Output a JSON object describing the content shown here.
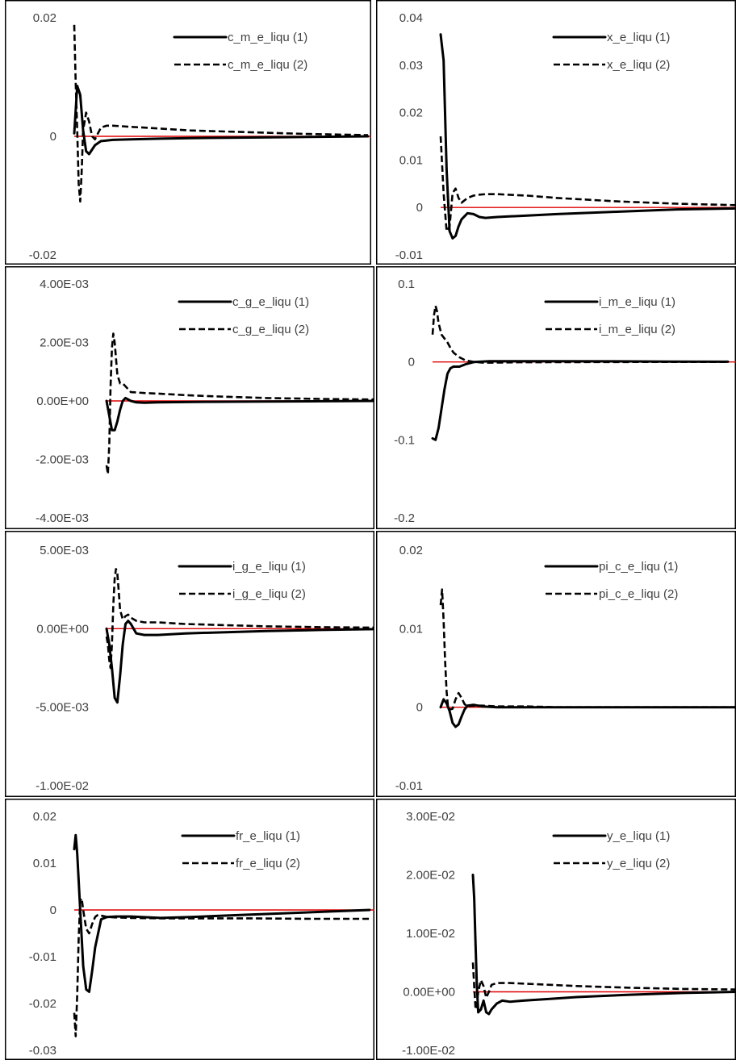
{
  "colors": {
    "series": "#000000",
    "zero_line": "#e00000",
    "tick_text": "#404040"
  },
  "chart_data": [
    {
      "type": "line",
      "ylim": [
        -0.02,
        0.02
      ],
      "yticks": [
        "0.02",
        "0",
        "-0.02"
      ],
      "ytick_values": [
        0.02,
        0,
        -0.02
      ],
      "legend_position": "top-right",
      "series": [
        {
          "name": "c_m_e_liqu (1)",
          "style": "solid",
          "x": [
            1,
            2,
            3,
            4,
            5,
            6,
            8,
            10,
            14,
            20,
            30,
            40,
            60,
            80,
            100
          ],
          "y": [
            0.0005,
            0.0085,
            0.007,
            0.001,
            -0.0025,
            -0.003,
            -0.0015,
            -0.0008,
            -0.0006,
            -0.0005,
            -0.0004,
            -0.0003,
            -0.0002,
            -0.0001,
            0
          ]
        },
        {
          "name": "c_m_e_liqu (2)",
          "style": "dashed",
          "x": [
            1,
            1.5,
            2,
            2.5,
            3,
            3.5,
            4,
            5,
            6,
            7,
            8,
            9,
            10,
            12,
            14,
            20,
            30,
            40,
            60,
            80,
            100
          ],
          "y": [
            0.0188,
            0.009,
            0.001,
            -0.008,
            -0.011,
            -0.006,
            0.001,
            0.004,
            0.0025,
            0,
            -0.0005,
            0.0005,
            0.0015,
            0.0018,
            0.0018,
            0.0016,
            0.0013,
            0.001,
            0.0007,
            0.0004,
            0.0002
          ]
        }
      ]
    },
    {
      "type": "line",
      "ylim": [
        -0.01,
        0.04
      ],
      "yticks": [
        "0.04",
        "0.03",
        "0.02",
        "0.01",
        "0",
        "-0.01"
      ],
      "ytick_values": [
        0.04,
        0.03,
        0.02,
        0.01,
        0,
        -0.01
      ],
      "legend_position": "top-right",
      "series": [
        {
          "name": "x_e_liqu (1)",
          "style": "solid",
          "x": [
            1,
            2,
            3,
            4,
            5,
            6,
            7,
            8,
            10,
            12,
            14,
            16,
            20,
            30,
            40,
            60,
            80,
            100
          ],
          "y": [
            0.0365,
            0.031,
            0.008,
            -0.005,
            -0.0065,
            -0.006,
            -0.004,
            -0.0025,
            -0.0012,
            -0.0014,
            -0.002,
            -0.0022,
            -0.002,
            -0.0017,
            -0.0014,
            -0.0009,
            -0.0004,
            -0.0002
          ]
        },
        {
          "name": "x_e_liqu (2)",
          "style": "dashed",
          "x": [
            1,
            2,
            3,
            4,
            5,
            6,
            7,
            8,
            10,
            12,
            14,
            16,
            20,
            30,
            40,
            60,
            80,
            100
          ],
          "y": [
            0.015,
            0.003,
            -0.005,
            -0.004,
            0.003,
            0.004,
            0.002,
            0.001,
            0.002,
            0.0025,
            0.0027,
            0.0028,
            0.0028,
            0.0025,
            0.002,
            0.0013,
            0.0008,
            0.0005
          ]
        }
      ]
    },
    {
      "type": "line",
      "ylim": [
        -0.004,
        0.004
      ],
      "yticks": [
        "4.00E-03",
        "2.00E-03",
        "0.00E+00",
        "-2.00E-03",
        "-4.00E-03"
      ],
      "ytick_values": [
        0.004,
        0.002,
        0,
        -0.002,
        -0.004
      ],
      "legend_position": "top-right",
      "series": [
        {
          "name": "c_g_e_liqu (1)",
          "style": "solid",
          "x": [
            1,
            2,
            3,
            4,
            5,
            6,
            7,
            8,
            10,
            12,
            15,
            20,
            30,
            40,
            60,
            80,
            100
          ],
          "y": [
            0,
            -0.0005,
            -0.001,
            -0.001,
            -0.0007,
            -0.0003,
            0,
            0.0001,
            0,
            -5e-05,
            -6e-05,
            -5e-05,
            -4e-05,
            -3e-05,
            -2e-05,
            -1e-05,
            0
          ]
        },
        {
          "name": "c_g_e_liqu (2)",
          "style": "dashed",
          "x": [
            1,
            1.5,
            2,
            2.5,
            3,
            3.5,
            4,
            5,
            6,
            7,
            8,
            9,
            10,
            12,
            15,
            20,
            30,
            40,
            60,
            80,
            100
          ],
          "y": [
            -0.0022,
            -0.0025,
            -0.0015,
            0.0005,
            0.0018,
            0.0023,
            0.002,
            0.0009,
            0.0006,
            0.0006,
            0.0005,
            0.0004,
            0.0003,
            0.00029,
            0.00027,
            0.00025,
            0.0002,
            0.00016,
            0.0001,
            7e-05,
            5e-05
          ]
        }
      ]
    },
    {
      "type": "line",
      "ylim": [
        -0.2,
        0.1
      ],
      "yticks": [
        "0.1",
        "0",
        "-0.1",
        "-0.2"
      ],
      "ytick_values": [
        0.1,
        0,
        -0.1,
        -0.2
      ],
      "legend_position": "top-right",
      "series": [
        {
          "name": "i_m_e_liqu (1)",
          "style": "solid",
          "x": [
            1,
            2,
            3,
            4,
            5,
            6,
            7,
            8,
            10,
            12,
            15,
            20,
            30,
            40,
            60,
            80,
            100
          ],
          "y": [
            -0.098,
            -0.1,
            -0.085,
            -0.06,
            -0.035,
            -0.015,
            -0.008,
            -0.006,
            -0.006,
            -0.003,
            0,
            0.001,
            0.001,
            0.001,
            0.0008,
            0.0005,
            0.0003
          ]
        },
        {
          "name": "i_m_e_liqu (2)",
          "style": "dashed",
          "x": [
            1,
            1.5,
            2,
            2.5,
            3,
            4,
            5,
            6,
            7,
            8,
            10,
            12,
            15,
            18,
            20,
            25,
            30,
            40,
            60,
            80,
            100
          ],
          "y": [
            0.035,
            0.06,
            0.072,
            0.065,
            0.05,
            0.035,
            0.03,
            0.025,
            0.018,
            0.012,
            0.006,
            0.002,
            0,
            -0.001,
            -0.001,
            -0.0008,
            -0.0005,
            -0.0003,
            -0.0001,
            0,
            0
          ]
        }
      ]
    },
    {
      "type": "line",
      "ylim": [
        -0.01,
        0.005
      ],
      "yticks": [
        "5.00E-03",
        "0.00E+00",
        "-5.00E-03",
        "-1.00E-02"
      ],
      "ytick_values": [
        0.005,
        0,
        -0.005,
        -0.01
      ],
      "legend_position": "top-right",
      "series": [
        {
          "name": "i_g_e_liqu (1)",
          "style": "solid",
          "x": [
            1,
            2,
            3,
            4,
            5,
            6,
            7,
            8,
            9,
            10,
            12,
            15,
            20,
            30,
            40,
            60,
            80,
            100
          ],
          "y": [
            0,
            -0.001,
            -0.0025,
            -0.0044,
            -0.0047,
            -0.003,
            -0.001,
            0.0003,
            0.0005,
            0.0003,
            -0.0003,
            -0.0004,
            -0.0004,
            -0.0003,
            -0.00025,
            -0.00015,
            -8e-05,
            -3e-05
          ]
        },
        {
          "name": "i_g_e_liqu (2)",
          "style": "dashed",
          "x": [
            1,
            1.5,
            2,
            2.5,
            3,
            3.5,
            4,
            4.5,
            5,
            5.5,
            6,
            7,
            8,
            9,
            10,
            12,
            15,
            20,
            30,
            40,
            60,
            80,
            100
          ],
          "y": [
            -0.0005,
            -0.001,
            -0.002,
            -0.0025,
            -0.001,
            0.0015,
            0.0032,
            0.0038,
            0.0035,
            0.0024,
            0.0012,
            0.0006,
            0.0008,
            0.0009,
            0.0007,
            0.0005,
            0.0004,
            0.0004,
            0.0003,
            0.00025,
            0.00015,
            0.0001,
            7e-05
          ]
        }
      ]
    },
    {
      "type": "line",
      "ylim": [
        -0.01,
        0.02
      ],
      "yticks": [
        "0.02",
        "0.01",
        "0",
        "-0.01"
      ],
      "ytick_values": [
        0.02,
        0.01,
        0,
        -0.01
      ],
      "legend_position": "top-right",
      "series": [
        {
          "name": "pi_c_e_liqu (1)",
          "style": "solid",
          "x": [
            1,
            2,
            3,
            4,
            5,
            6,
            7,
            8,
            9,
            10,
            12,
            15,
            20,
            30,
            40,
            60,
            80,
            100
          ],
          "y": [
            0,
            0.001,
            0.0005,
            -0.0005,
            -0.002,
            -0.0025,
            -0.0022,
            -0.0012,
            -0.0003,
            0.0002,
            0.0003,
            0.0001,
            0,
            0,
            0,
            0,
            0,
            0
          ]
        },
        {
          "name": "pi_c_e_liqu (2)",
          "style": "dashed",
          "x": [
            1,
            1.5,
            2,
            2.5,
            3,
            3.5,
            4,
            5,
            6,
            7,
            8,
            9,
            10,
            12,
            15,
            20,
            30,
            40,
            60,
            80,
            100
          ],
          "y": [
            0.013,
            0.015,
            0.011,
            0.006,
            0.002,
            0,
            -0.0003,
            -0.0002,
            0.001,
            0.0018,
            0.0012,
            0.0004,
            0.0001,
            0.0002,
            0.0002,
            0.0001,
            0.0001,
            0,
            0,
            0,
            0
          ]
        }
      ]
    },
    {
      "type": "line",
      "ylim": [
        -0.03,
        0.02
      ],
      "yticks": [
        "0.02",
        "0.01",
        "0",
        "-0.01",
        "-0.02",
        "-0.03"
      ],
      "ytick_values": [
        0.02,
        0.01,
        0,
        -0.01,
        -0.02,
        -0.03
      ],
      "legend_position": "top-right",
      "series": [
        {
          "name": "fr_e_liqu (1)",
          "style": "solid",
          "x": [
            1,
            1.5,
            2,
            3,
            4,
            5,
            6,
            7,
            8,
            10,
            12,
            15,
            20,
            30,
            40,
            60,
            80,
            100
          ],
          "y": [
            0.013,
            0.016,
            0.012,
            0,
            -0.012,
            -0.017,
            -0.0175,
            -0.013,
            -0.008,
            -0.002,
            -0.0015,
            -0.0014,
            -0.0014,
            -0.0017,
            -0.0015,
            -0.001,
            -0.0005,
            0
          ]
        },
        {
          "name": "fr_e_liqu (2)",
          "style": "dashed",
          "x": [
            1,
            1.5,
            2,
            2.5,
            3,
            3.5,
            4,
            5,
            6,
            7,
            8,
            9,
            10,
            12,
            15,
            20,
            30,
            40,
            60,
            80,
            100
          ],
          "y": [
            -0.022,
            -0.027,
            -0.018,
            -0.006,
            0.002,
            0.0025,
            0,
            -0.004,
            -0.005,
            -0.003,
            -0.0015,
            -0.001,
            -0.0012,
            -0.0015,
            -0.0016,
            -0.0017,
            -0.0018,
            -0.0018,
            -0.0018,
            -0.0019,
            -0.0019
          ]
        }
      ]
    },
    {
      "type": "line",
      "ylim": [
        -0.01,
        0.03
      ],
      "yticks": [
        "3.00E-02",
        "2.00E-02",
        "1.00E-02",
        "0.00E+00",
        "-1.00E-02"
      ],
      "ytick_values": [
        0.03,
        0.02,
        0.01,
        0,
        -0.01
      ],
      "legend_position": "top-right",
      "series": [
        {
          "name": "y_e_liqu (1)",
          "style": "solid",
          "x": [
            1,
            1.5,
            2,
            2.5,
            3,
            4,
            5,
            6,
            7,
            8,
            10,
            12,
            15,
            20,
            30,
            40,
            60,
            80,
            100
          ],
          "y": [
            0.02,
            0.016,
            0.008,
            0.001,
            -0.0035,
            -0.003,
            -0.0015,
            -0.0035,
            -0.0038,
            -0.003,
            -0.002,
            -0.0015,
            -0.0017,
            -0.0015,
            -0.0012,
            -0.0009,
            -0.0005,
            -0.0002,
            0
          ]
        },
        {
          "name": "y_e_liqu (2)",
          "style": "dashed",
          "x": [
            1,
            1.5,
            2,
            2.5,
            3,
            4,
            5,
            6,
            7,
            8,
            10,
            12,
            15,
            20,
            30,
            40,
            60,
            80,
            100
          ],
          "y": [
            0.005,
            0.001,
            -0.003,
            -0.002,
            0,
            0.002,
            0.001,
            -0.001,
            0,
            0.0012,
            0.0015,
            0.0015,
            0.0015,
            0.0014,
            0.0012,
            0.001,
            0.0007,
            0.0005,
            0.0004
          ]
        }
      ]
    }
  ]
}
